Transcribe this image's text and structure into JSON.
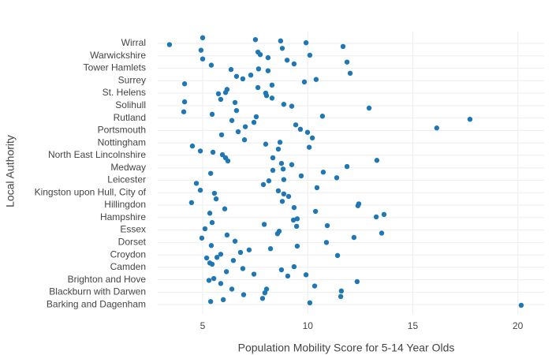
{
  "chart_data": {
    "type": "scatter",
    "x_label": "Population Mobility Score for 5-14 Year Olds",
    "y_label": "Local Authority",
    "color": "#1f77b4",
    "grid": true,
    "xlim": [
      2.86,
      21.25
    ],
    "xticks": [
      5,
      10,
      15,
      20
    ],
    "ylim": [
      -1.5,
      43.9
    ],
    "yticks": [
      {
        "value": 0,
        "label": "Barking and Dagenham"
      },
      {
        "value": 2,
        "label": "Blackburn with Darwen"
      },
      {
        "value": 4,
        "label": "Brighton and Hove"
      },
      {
        "value": 6,
        "label": "Camden"
      },
      {
        "value": 8,
        "label": "Croydon"
      },
      {
        "value": 10,
        "label": "Dorset"
      },
      {
        "value": 12,
        "label": "Essex"
      },
      {
        "value": 14,
        "label": "Hampshire"
      },
      {
        "value": 16,
        "label": "Hillingdon"
      },
      {
        "value": 18,
        "label": "Kingston upon Hull, City of"
      },
      {
        "value": 20,
        "label": "Leicester"
      },
      {
        "value": 22,
        "label": "Medway"
      },
      {
        "value": 24,
        "label": "North East Lincolnshire"
      },
      {
        "value": 26,
        "label": "Nottingham"
      },
      {
        "value": 28,
        "label": "Portsmouth"
      },
      {
        "value": 30,
        "label": "Rutland"
      },
      {
        "value": 32,
        "label": "Solihull"
      },
      {
        "value": 34,
        "label": "St. Helens"
      },
      {
        "value": 36,
        "label": "Surrey"
      },
      {
        "value": 38,
        "label": "Tower Hamlets"
      },
      {
        "value": 40,
        "label": "Warwickshire"
      },
      {
        "value": 42,
        "label": "Wirral"
      }
    ],
    "x": [
      5.0,
      7.51,
      8.71,
      9.92,
      3.42,
      11.68,
      8.79,
      4.92,
      7.63,
      7.74,
      10.1,
      8.11,
      5.0,
      9.02,
      11.87,
      9.35,
      5.41,
      12.02,
      6.35,
      7.66,
      8.11,
      7.29,
      6.61,
      6.91,
      10.4,
      4.14,
      9.84,
      7.63,
      8.3,
      6.16,
      6.09,
      5.75,
      8.0,
      8.04,
      8.3,
      5.86,
      6.54,
      4.14,
      8.86,
      9.24,
      12.92,
      6.61,
      4.1,
      5.45,
      10.7,
      7.55,
      17.72,
      6.39,
      7.44,
      9.43,
      7.03,
      16.14,
      9.65,
      9.99,
      5.9,
      6.69,
      10.22,
      6.99,
      8.68,
      4.51,
      8.0,
      8.6,
      10.07,
      4.89,
      5.49,
      5.94,
      6.09,
      6.2,
      13.29,
      8.34,
      8.75,
      9.24,
      11.87,
      8.83,
      10.74,
      8.34,
      5.38,
      11.38,
      9.69,
      4.7,
      8.15,
      8.86,
      7.89,
      10.44,
      4.89,
      8.6,
      5.56,
      8.86,
      9.09,
      5.64,
      8.79,
      12.43,
      4.47,
      9.35,
      12.39,
      6.05,
      10.37,
      5.34,
      13.63,
      13.26,
      9.5,
      9.32,
      5.45,
      7.93,
      10.93,
      5.11,
      8.64,
      8.56,
      9.47,
      13.52,
      6.16,
      4.96,
      12.2,
      6.54,
      10.89,
      5.41,
      9.5,
      8.23,
      7.21,
      6.8,
      5.86,
      5.19,
      5.68,
      6.46,
      11.42,
      5.34,
      5.45,
      9.35,
      8.75,
      6.91,
      7.44,
      6.13,
      9.92,
      9.05,
      5.53,
      12.35,
      5.3,
      5.86,
      10.33,
      6.39,
      11.6,
      8.04,
      7.96,
      6.95,
      11.57,
      5.98,
      7.85,
      5.38,
      10.1,
      20.16
    ],
    "values": [
      42.9,
      42.6,
      42.4,
      42.1,
      41.8,
      41.5,
      41.2,
      40.9,
      40.6,
      40.2,
      40.1,
      39.7,
      39.5,
      39.3,
      39.0,
      38.7,
      38.5,
      37.2,
      37.8,
      37.9,
      37.6,
      36.9,
      36.7,
      36.3,
      36.2,
      35.5,
      35.8,
      34.9,
      35.3,
      34.6,
      34.1,
      33.9,
      34.0,
      33.6,
      33.2,
      33.0,
      32.5,
      32.6,
      32.2,
      31.9,
      31.6,
      31.2,
      31.0,
      30.6,
      30.3,
      30.2,
      29.8,
      29.6,
      29.3,
      28.9,
      28.6,
      28.4,
      28.2,
      27.7,
      27.3,
      27.8,
      26.8,
      26.5,
      26.1,
      25.5,
      25.8,
      25.0,
      25.3,
      24.7,
      24.5,
      24.1,
      23.6,
      23.1,
      23.2,
      23.6,
      22.7,
      22.5,
      22.2,
      21.8,
      21.3,
      21.6,
      21.1,
      20.4,
      20.7,
      19.5,
      19.9,
      20.1,
      19.3,
      18.8,
      18.4,
      18.3,
      17.9,
      17.8,
      17.4,
      17.0,
      16.6,
      16.2,
      16.4,
      15.6,
      15.9,
      15.4,
      15.0,
      14.7,
      14.5,
      14.1,
      13.8,
      13.6,
      13.2,
      12.9,
      12.7,
      12.2,
      11.8,
      11.4,
      12.6,
      11.5,
      11.2,
      10.7,
      10.8,
      10.2,
      10.0,
      9.5,
      9.4,
      9.0,
      8.8,
      8.4,
      8.1,
      7.5,
      7.6,
      7.1,
      7.9,
      6.7,
      6.5,
      6.1,
      5.6,
      5.8,
      4.9,
      5.3,
      4.8,
      4.6,
      4.2,
      3.7,
      3.9,
      3.4,
      3.0,
      2.5,
      2.2,
      2.5,
      1.9,
      1.6,
      1.3,
      0.8,
      1.0,
      0.5,
      0.3,
      -0.1
    ]
  }
}
